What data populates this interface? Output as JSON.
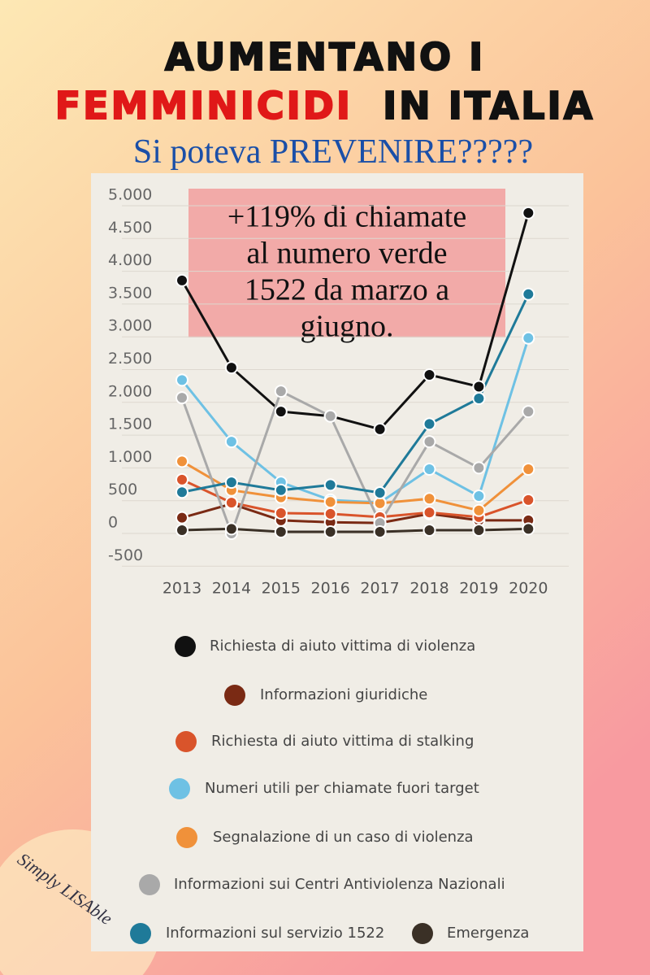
{
  "title": [
    "AUMENTANO I",
    "FEMMINICIDI",
    "IN ITALIA"
  ],
  "subtitle": "Si poteva PREVENIRE?????",
  "watermark": "Simply LISAble",
  "chart_data": {
    "type": "line",
    "annotation": [
      "+119% di chiamate",
      "al numero verde",
      "1522 da marzo a",
      "giugno."
    ],
    "categories": [
      "2013",
      "2014",
      "2015",
      "2016",
      "2017",
      "2018",
      "2019",
      "2020"
    ],
    "ylim": [
      -500,
      5000
    ],
    "yticks": [
      {
        "value": 5000,
        "label": "5.000"
      },
      {
        "value": 4500,
        "label": "4.500"
      },
      {
        "value": 4000,
        "label": "4.000"
      },
      {
        "value": 3500,
        "label": "3.500"
      },
      {
        "value": 3000,
        "label": "3.000"
      },
      {
        "value": 2500,
        "label": "2.500"
      },
      {
        "value": 2000,
        "label": "2.000"
      },
      {
        "value": 1500,
        "label": "1.500"
      },
      {
        "value": 1000,
        "label": "1.000"
      },
      500,
      0,
      -500
    ],
    "grid": true,
    "series": [
      {
        "name": "Richiesta di aiuto vittima di violenza",
        "color": "#111111",
        "values": [
          3860,
          2530,
          1860,
          1790,
          1590,
          2420,
          2240,
          4890
        ]
      },
      {
        "name": "Informazioni giuridiche",
        "color": "#7a2a14",
        "values": [
          240,
          450,
          200,
          170,
          160,
          300,
          200,
          200
        ]
      },
      {
        "name": "Richiesta di aiuto vittima di stalking",
        "color": "#d9542b",
        "values": [
          820,
          470,
          310,
          300,
          250,
          320,
          250,
          510
        ]
      },
      {
        "name": "Numeri utili per chiamate fuori target",
        "color": "#6ec1e4",
        "values": [
          2340,
          1400,
          780,
          510,
          470,
          980,
          570,
          2980
        ]
      },
      {
        "name": "Segnalazione di un caso di violenza",
        "color": "#f0913a",
        "values": [
          1100,
          660,
          550,
          480,
          460,
          530,
          350,
          980
        ]
      },
      {
        "name": "Informazioni sui Centri Antiviolenza Nazionali",
        "color": "#a9a9a9",
        "values": [
          2070,
          0,
          2170,
          1790,
          160,
          1400,
          1000,
          1860
        ]
      },
      {
        "name": "Informazioni sul servizio 1522",
        "color": "#1f7a99",
        "values": [
          630,
          780,
          660,
          740,
          620,
          1670,
          2060,
          3650
        ]
      },
      {
        "name": "Emergenza",
        "color": "#3a3026",
        "values": [
          50,
          70,
          25,
          25,
          25,
          50,
          50,
          70
        ]
      }
    ]
  }
}
